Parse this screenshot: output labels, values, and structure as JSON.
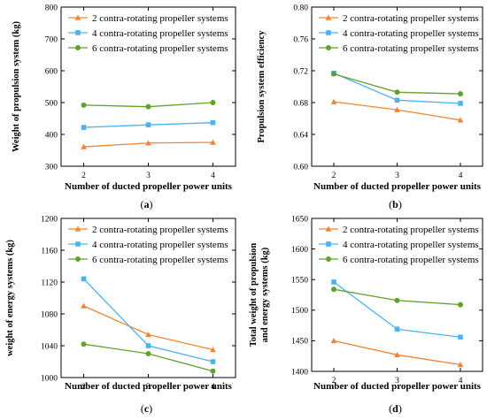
{
  "colors": {
    "s2": "#f28535",
    "s4": "#4ab3f0",
    "s6": "#62a12c"
  },
  "chart_data": [
    {
      "type": "line",
      "panel": "a",
      "xlabel": "Number of ducted propeller power units",
      "ylabel": "Weight of propulsion system (kg)",
      "x": [
        2,
        3,
        4
      ],
      "xticks": [
        "2",
        "3",
        "4"
      ],
      "ylim": [
        300,
        800
      ],
      "yticks": [
        "300",
        "400",
        "500",
        "600",
        "700",
        "800"
      ],
      "legend": "top-right",
      "series": [
        {
          "name": "2 contra-rotating propeller systems",
          "marker": "triangle",
          "values": [
            361,
            373,
            375
          ]
        },
        {
          "name": "4 contra-rotating propeller systems",
          "marker": "square",
          "values": [
            422,
            430,
            437
          ]
        },
        {
          "name": "6 contra-rotating propeller systems",
          "marker": "circle",
          "values": [
            492,
            487,
            500
          ]
        }
      ],
      "caption": [
        "(",
        "a",
        ")"
      ]
    },
    {
      "type": "line",
      "panel": "b",
      "xlabel": "Number of ducted propeller power units",
      "ylabel": "Propulsion system efficiency",
      "x": [
        2,
        3,
        4
      ],
      "xticks": [
        "2",
        "3",
        "4"
      ],
      "ylim": [
        0.6,
        0.8
      ],
      "yticks": [
        "0.60",
        "0.64",
        "0.68",
        "0.72",
        "0.76",
        "0.80"
      ],
      "legend": "top-right",
      "series": [
        {
          "name": "2 contra-rotating propeller systems",
          "marker": "triangle",
          "values": [
            0.681,
            0.671,
            0.658
          ]
        },
        {
          "name": "4 contra-rotating propeller systems",
          "marker": "square",
          "values": [
            0.717,
            0.683,
            0.679
          ]
        },
        {
          "name": "6 contra-rotating propeller systems",
          "marker": "circle",
          "values": [
            0.716,
            0.693,
            0.691
          ]
        }
      ],
      "caption": [
        "(",
        "b",
        ")"
      ]
    },
    {
      "type": "line",
      "panel": "c",
      "xlabel": "Number of ducted propeller power units",
      "ylabel": "weight of energy systems (kg)",
      "x": [
        2,
        3,
        4
      ],
      "xticks": [
        "2",
        "3",
        "4"
      ],
      "ylim": [
        1000,
        1200
      ],
      "yticks": [
        "1000",
        "1040",
        "1080",
        "1120",
        "1160",
        "1200"
      ],
      "legend": "top-right",
      "series": [
        {
          "name": "2 contra-rotating propeller systems",
          "marker": "triangle",
          "values": [
            1090,
            1054,
            1035
          ]
        },
        {
          "name": "4 contra-rotating propeller systems",
          "marker": "square",
          "values": [
            1124,
            1040,
            1020
          ]
        },
        {
          "name": "6 contra-rotating propeller systems",
          "marker": "circle",
          "values": [
            1042,
            1030,
            1008
          ]
        }
      ],
      "caption": [
        "(",
        "c",
        ")"
      ]
    },
    {
      "type": "line",
      "panel": "d",
      "xlabel": "Number of ducted propeller power units",
      "ylabel": [
        "Total weight of propulsion",
        "and energy systems (kg)"
      ],
      "x": [
        2,
        3,
        4
      ],
      "xticks": [
        "2",
        "3",
        "4"
      ],
      "ylim": [
        1400,
        1650
      ],
      "yticks": [
        "1400",
        "1450",
        "1500",
        "1550",
        "1600",
        "1650"
      ],
      "legend": "top-right",
      "series": [
        {
          "name": "2 contra-rotating propeller systems",
          "marker": "triangle",
          "values": [
            1450,
            1427,
            1411
          ]
        },
        {
          "name": "4 contra-rotating propeller systems",
          "marker": "square",
          "values": [
            1546,
            1469,
            1456
          ]
        },
        {
          "name": "6 contra-rotating propeller systems",
          "marker": "circle",
          "values": [
            1534,
            1516,
            1509
          ]
        }
      ],
      "caption": [
        "(",
        "d",
        ")"
      ]
    }
  ]
}
